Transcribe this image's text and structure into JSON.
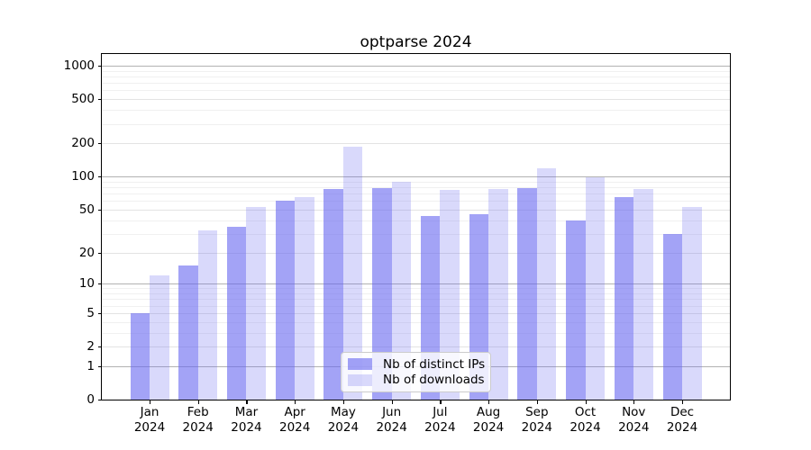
{
  "title": "optparse 2024",
  "chart_data": {
    "type": "bar",
    "title": "optparse 2024",
    "categories": [
      "Jan",
      "Feb",
      "Mar",
      "Apr",
      "May",
      "Jun",
      "Jul",
      "Aug",
      "Sep",
      "Oct",
      "Nov",
      "Dec"
    ],
    "year": "2024",
    "series": [
      {
        "name": "Nb of distinct IPs",
        "color": "#a3a3f2",
        "fill": "rgba(102,102,240,0.6)",
        "values": [
          5,
          15,
          35,
          60,
          77,
          78,
          44,
          45,
          78,
          40,
          65,
          30
        ]
      },
      {
        "name": "Nb of downloads",
        "color": "#d9d9fb",
        "fill": "rgba(102,102,240,0.25)",
        "values": [
          12,
          32,
          53,
          65,
          187,
          90,
          75,
          77,
          120,
          98,
          77,
          53
        ]
      }
    ],
    "y_ticks": [
      0,
      1,
      2,
      5,
      10,
      20,
      50,
      100,
      200,
      500,
      1000
    ],
    "y_major_gridlines": [
      1,
      10,
      100,
      1000
    ],
    "y_minor_gridlines": [
      3,
      4,
      6,
      7,
      8,
      9,
      30,
      40,
      60,
      70,
      80,
      90,
      300,
      400,
      600,
      700,
      800,
      900
    ],
    "scale": "log1p",
    "ylim": [
      0,
      1276
    ],
    "grid": true,
    "legend_position": "lower center"
  }
}
